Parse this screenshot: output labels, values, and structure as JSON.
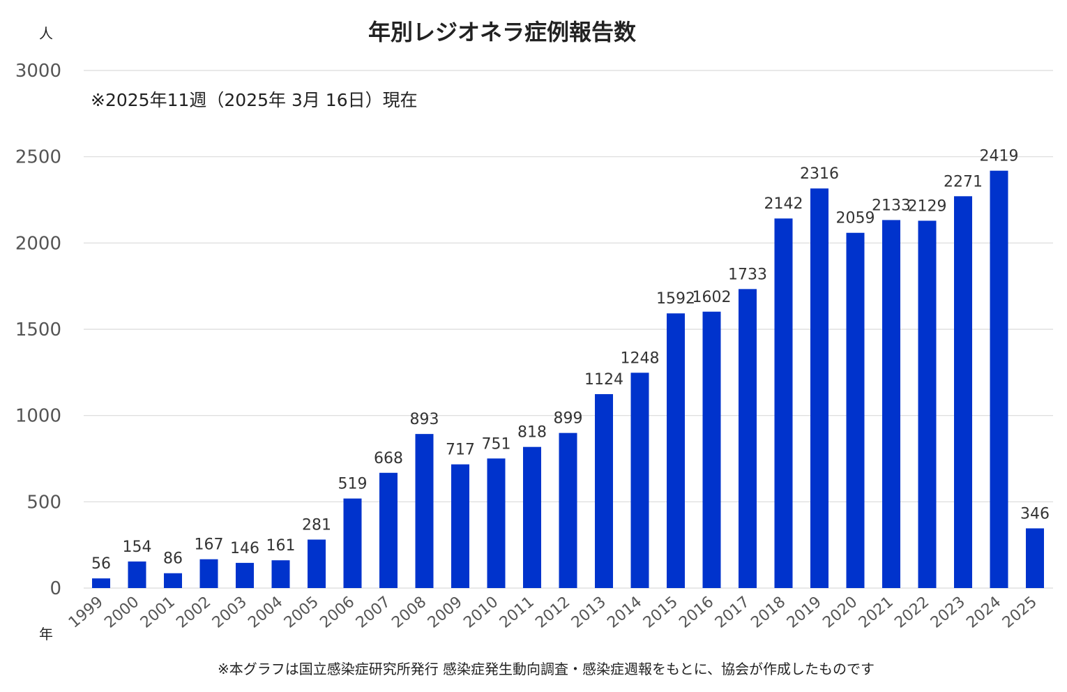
{
  "chart_data": {
    "type": "bar",
    "title": "年別レジオネラ症例報告数",
    "subtitle": "※2025年11週（2025年 3月 16日）現在",
    "ylabel": "人",
    "xlabel": "年",
    "ylim": [
      0,
      3000
    ],
    "yticks": [
      "0",
      "500",
      "1000",
      "1500",
      "2000",
      "2500",
      "3000"
    ],
    "grid": true,
    "legend": "none",
    "bar_color": "#0033cc",
    "categories": [
      "1999",
      "2000",
      "2001",
      "2002",
      "2003",
      "2004",
      "2005",
      "2006",
      "2007",
      "2008",
      "2009",
      "2010",
      "2011",
      "2012",
      "2013",
      "2014",
      "2015",
      "2016",
      "2017",
      "2018",
      "2019",
      "2020",
      "2021",
      "2022",
      "2023",
      "2024",
      "2025"
    ],
    "values": [
      56,
      154,
      86,
      167,
      146,
      161,
      281,
      519,
      668,
      893,
      717,
      751,
      818,
      899,
      1124,
      1248,
      1592,
      1602,
      1733,
      2142,
      2316,
      2059,
      2133,
      2129,
      2271,
      2419,
      346
    ],
    "footnote": "※本グラフは国立感染症研究所発行 感染症発生動向調査・感染症週報をもとに、協会が作成したものです"
  }
}
